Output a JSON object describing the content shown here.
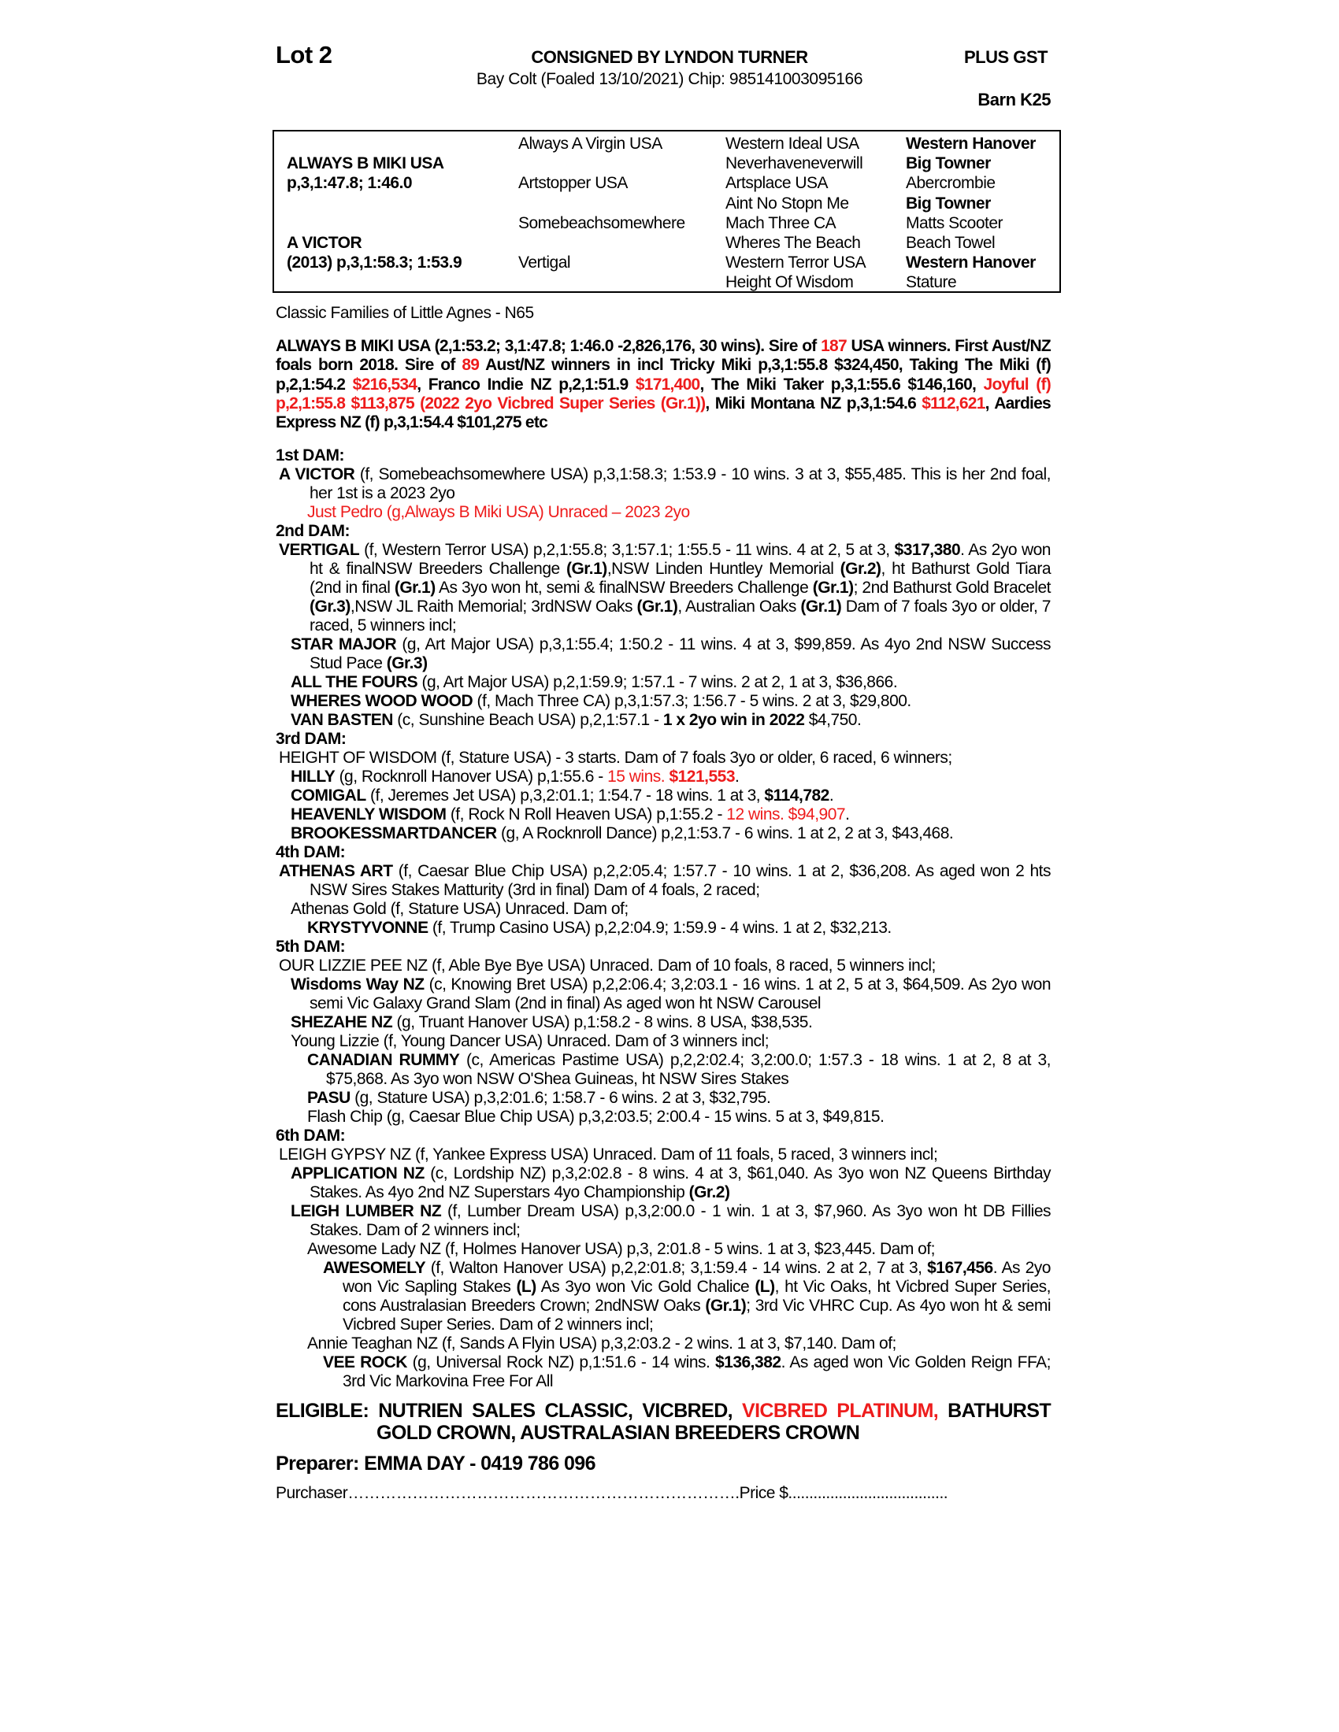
{
  "header": {
    "lot": "Lot 2",
    "consignor": "CONSIGNED BY LYNDON TURNER",
    "gst": "PLUS GST",
    "description": "Bay Colt (Foaled 13/10/2021) Chip: 985141003095166",
    "barn": "Barn K25"
  },
  "pedigree": {
    "sire_name": "ALWAYS B MIKI USA",
    "sire_record": "p,3,1:47.8; 1:46.0",
    "dam_name": "A VICTOR",
    "dam_record": "(2013) p,3,1:58.3; 1:53.9",
    "col2": [
      "Always A Virgin USA",
      "Artstopper USA",
      "Somebeachsomewhere",
      "Vertigal"
    ],
    "col3": [
      "Western Ideal USA",
      "Neverhaveneverwill",
      "Artsplace USA",
      "Aint No Stopn Me",
      "Mach Three CA",
      "Wheres The Beach",
      "Western Terror USA",
      "Height Of Wisdom"
    ],
    "col4": [
      {
        "t": "Western Hanover",
        "b": true
      },
      {
        "t": "Big Towner",
        "b": true
      },
      {
        "t": "Abercrombie",
        "b": false
      },
      {
        "t": "Big Towner",
        "b": true
      },
      {
        "t": "Matts Scooter",
        "b": false
      },
      {
        "t": "Beach Towel",
        "b": false
      },
      {
        "t": "Western Hanover",
        "b": true
      },
      {
        "t": "Stature",
        "b": false
      }
    ]
  },
  "family": "Classic Families of Little Agnes - N65",
  "sire_summary": [
    {
      "t": "ALWAYS B MIKI USA (2,1:53.2; 3,1:47.8; 1:46.0 -2,826,176, 30 wins). Sire of "
    },
    {
      "t": "187",
      "r": true
    },
    {
      "t": " USA winners. First Aust/NZ foals born 2018. Sire of "
    },
    {
      "t": "89",
      "r": true
    },
    {
      "t": " Aust/NZ winners in incl Tricky Miki p,3,1:55.8 $324,450, Taking The Miki (f) p,2,1:54.2 "
    },
    {
      "t": "$216,534",
      "r": true
    },
    {
      "t": ", Franco Indie NZ p,2,1:51.9 "
    },
    {
      "t": "$171,400",
      "r": true
    },
    {
      "t": ", The Miki Taker p,3,1:55.6 $146,160, "
    },
    {
      "t": "Joyful (f) p,2,1:55.8 $113,875 (2022 2yo Vicbred Super Series (Gr.1))",
      "r": true
    },
    {
      "t": ", Miki Montana NZ p,3,1:54.6 "
    },
    {
      "t": "$112,621",
      "r": true
    },
    {
      "t": ", Aardies Express NZ (f) p,3,1:54.4 $101,275 etc"
    }
  ],
  "dams": [
    {
      "heading": "1st DAM:",
      "entries": [
        {
          "level": 0,
          "segs": [
            {
              "t": "A VICTOR",
              "b": true
            },
            {
              "t": " (f, Somebeachsomewhere USA) p,3,1:58.3; 1:53.9 - 10 wins. 3 at 3, $55,485. This is her 2nd foal, her 1st is a 2023 2yo"
            }
          ]
        },
        {
          "level": 2,
          "segs": [
            {
              "t": "Just Pedro (g,Always B Miki USA) Unraced – 2023 2yo",
              "r": true
            }
          ]
        }
      ]
    },
    {
      "heading": "2nd DAM:",
      "entries": [
        {
          "level": 0,
          "segs": [
            {
              "t": "VERTIGAL",
              "b": true
            },
            {
              "t": " (f, Western Terror USA) p,2,1:55.8; 3,1:57.1; 1:55.5 - 11 wins. 4 at 2, 5 at 3, "
            },
            {
              "t": "$317,380",
              "b": true
            },
            {
              "t": ". As 2yo won ht & finalNSW Breeders Challenge "
            },
            {
              "t": "(Gr.1)",
              "b": true
            },
            {
              "t": ",NSW Linden Huntley Memorial "
            },
            {
              "t": "(Gr.2)",
              "b": true
            },
            {
              "t": ", ht Bathurst Gold Tiara (2nd in final "
            },
            {
              "t": "(Gr.1)",
              "b": true
            },
            {
              "t": " As 3yo won ht, semi & finalNSW Breeders Challenge "
            },
            {
              "t": "(Gr.1)",
              "b": true
            },
            {
              "t": "; 2nd Bathurst Gold Bracelet "
            },
            {
              "t": "(Gr.3)",
              "b": true
            },
            {
              "t": ",NSW JL Raith Memorial; 3rdNSW Oaks "
            },
            {
              "t": "(Gr.1)",
              "b": true
            },
            {
              "t": ", Australian Oaks "
            },
            {
              "t": "(Gr.1)",
              "b": true
            },
            {
              "t": " Dam of 7 foals 3yo or older, 7 raced, 5 winners incl;"
            }
          ]
        },
        {
          "level": 1,
          "segs": [
            {
              "t": "STAR MAJOR",
              "b": true
            },
            {
              "t": " (g, Art Major USA) p,3,1:55.4; 1:50.2 - 11 wins. 4 at 3, $99,859. As 4yo 2nd NSW Success Stud Pace "
            },
            {
              "t": "(Gr.3)",
              "b": true
            }
          ]
        },
        {
          "level": 1,
          "segs": [
            {
              "t": "ALL THE FOURS",
              "b": true
            },
            {
              "t": " (g, Art Major USA) p,2,1:59.9; 1:57.1 - 7 wins. 2 at 2, 1 at 3, $36,866."
            }
          ]
        },
        {
          "level": 1,
          "segs": [
            {
              "t": "WHERES WOOD WOOD",
              "b": true
            },
            {
              "t": " (f, Mach Three CA) p,3,1:57.3; 1:56.7 - 5 wins. 2 at 3, $29,800."
            }
          ]
        },
        {
          "level": 1,
          "segs": [
            {
              "t": "VAN BASTEN",
              "b": true
            },
            {
              "t": " (c, Sunshine Beach USA) p,2,1:57.1 - "
            },
            {
              "t": "1 x 2yo win in 2022",
              "b": true
            },
            {
              "t": " $4,750."
            }
          ]
        }
      ]
    },
    {
      "heading": "3rd DAM:",
      "entries": [
        {
          "level": 0,
          "segs": [
            {
              "t": "HEIGHT OF WISDOM (f, Stature USA) - 3 starts. Dam of 7 foals 3yo or older, 6 raced, 6 winners;"
            }
          ]
        },
        {
          "level": 1,
          "segs": [
            {
              "t": "HILLY",
              "b": true
            },
            {
              "t": " (g, Rocknroll Hanover USA) p,1:55.6 - "
            },
            {
              "t": "15 wins. ",
              "r": true
            },
            {
              "t": "$121,553",
              "r": true,
              "b": true
            },
            {
              "t": "."
            }
          ]
        },
        {
          "level": 1,
          "segs": [
            {
              "t": "COMIGAL",
              "b": true
            },
            {
              "t": " (f, Jeremes Jet USA) p,3,2:01.1; 1:54.7 - 18 wins. 1 at 3, "
            },
            {
              "t": "$114,782",
              "b": true
            },
            {
              "t": "."
            }
          ]
        },
        {
          "level": 1,
          "segs": [
            {
              "t": "HEAVENLY WISDOM",
              "b": true
            },
            {
              "t": " (f, Rock N Roll Heaven USA) p,1:55.2 - "
            },
            {
              "t": "12 wins. $94,907",
              "r": true
            },
            {
              "t": "."
            }
          ]
        },
        {
          "level": 1,
          "segs": [
            {
              "t": "BROOKESSMARTDANCER",
              "b": true
            },
            {
              "t": " (g, A Rocknroll Dance) p,2,1:53.7 - 6 wins. 1 at 2, 2 at 3, $43,468."
            }
          ]
        }
      ]
    },
    {
      "heading": "4th DAM:",
      "entries": [
        {
          "level": 0,
          "segs": [
            {
              "t": "ATHENAS ART",
              "b": true
            },
            {
              "t": " (f, Caesar Blue Chip USA) p,2,2:05.4; 1:57.7 - 10 wins. 1 at 2, $36,208. As aged won 2 hts NSW Sires Stakes Matturity (3rd in final) Dam of 4 foals, 2 raced;"
            }
          ]
        },
        {
          "level": 1,
          "segs": [
            {
              "t": "Athenas Gold (f, Stature USA) Unraced. Dam of;"
            }
          ]
        },
        {
          "level": 2,
          "segs": [
            {
              "t": "KRYSTYVONNE",
              "b": true
            },
            {
              "t": " (f, Trump Casino USA) p,2,2:04.9; 1:59.9 - 4 wins. 1 at 2, $32,213."
            }
          ]
        }
      ]
    },
    {
      "heading": "5th DAM:",
      "entries": [
        {
          "level": 0,
          "segs": [
            {
              "t": "OUR LIZZIE PEE NZ (f, Able Bye Bye USA) Unraced. Dam of 10 foals, 8 raced, 5 winners incl;"
            }
          ]
        },
        {
          "level": 1,
          "segs": [
            {
              "t": "Wisdoms Way NZ",
              "b": true
            },
            {
              "t": " (c, Knowing Bret USA) p,2,2:06.4; 3,2:03.1 - 16 wins. 1 at 2, 5 at 3, $64,509. As 2yo won semi Vic Galaxy Grand Slam (2nd in final) As aged won ht NSW Carousel"
            }
          ]
        },
        {
          "level": 1,
          "segs": [
            {
              "t": "SHEZAHE NZ",
              "b": true
            },
            {
              "t": " (g, Truant Hanover USA) p,1:58.2 - 8 wins. 8 USA, $38,535."
            }
          ]
        },
        {
          "level": 1,
          "segs": [
            {
              "t": "Young Lizzie (f, Young Dancer USA) Unraced. Dam of 3 winners incl;"
            }
          ]
        },
        {
          "level": 2,
          "segs": [
            {
              "t": "CANADIAN RUMMY",
              "b": true
            },
            {
              "t": " (c, Americas Pastime USA) p,2,2:02.4; 3,2:00.0; 1:57.3 - 18 wins. 1 at 2, 8 at 3, $75,868. As 3yo won NSW O'Shea Guineas, ht NSW Sires Stakes"
            }
          ]
        },
        {
          "level": 2,
          "segs": [
            {
              "t": "PASU",
              "b": true
            },
            {
              "t": " (g, Stature USA) p,3,2:01.6; 1:58.7 - 6 wins. 2 at 3, $32,795."
            }
          ]
        },
        {
          "level": 2,
          "segs": [
            {
              "t": "Flash Chip (g, Caesar Blue Chip USA) p,3,2:03.5; 2:00.4 - 15 wins. 5 at 3, $49,815."
            }
          ]
        }
      ]
    },
    {
      "heading": "6th DAM:",
      "entries": [
        {
          "level": 0,
          "segs": [
            {
              "t": "LEIGH GYPSY NZ (f, Yankee Express USA) Unraced. Dam of 11 foals, 5 raced, 3 winners incl;"
            }
          ]
        },
        {
          "level": 1,
          "segs": [
            {
              "t": "APPLICATION NZ",
              "b": true
            },
            {
              "t": " (c, Lordship NZ) p,3,2:02.8 - 8 wins. 4 at 3, $61,040. As 3yo won NZ Queens Birthday Stakes. As 4yo 2nd NZ Superstars 4yo Championship "
            },
            {
              "t": "(Gr.2)",
              "b": true
            }
          ]
        },
        {
          "level": 1,
          "segs": [
            {
              "t": "LEIGH LUMBER NZ",
              "b": true
            },
            {
              "t": " (f, Lumber Dream USA) p,3,2:00.0 - 1 win. 1 at 3, $7,960. As 3yo won ht DB Fillies Stakes. Dam of 2 winners incl;"
            }
          ]
        },
        {
          "level": 2,
          "segs": [
            {
              "t": "Awesome Lady NZ (f, Holmes Hanover USA) p,3, 2:01.8 - 5 wins. 1 at 3, $23,445. Dam of;"
            }
          ]
        },
        {
          "level": 3,
          "segs": [
            {
              "t": "AWESOMELY",
              "b": true
            },
            {
              "t": " (f, Walton Hanover USA) p,2,2:01.8; 3,1:59.4 - 14 wins. 2 at 2, 7 at 3, "
            },
            {
              "t": "$167,456",
              "b": true
            },
            {
              "t": ". As 2yo won Vic Sapling Stakes "
            },
            {
              "t": "(L)",
              "b": true
            },
            {
              "t": " As 3yo won Vic Gold Chalice "
            },
            {
              "t": "(L)",
              "b": true
            },
            {
              "t": ", ht Vic Oaks, ht Vicbred Super Series, cons Australasian Breeders Crown; 2ndNSW Oaks "
            },
            {
              "t": "(Gr.1)",
              "b": true
            },
            {
              "t": "; 3rd Vic VHRC Cup. As 4yo won ht & semi Vicbred Super Series. Dam of 2 winners incl;"
            }
          ]
        },
        {
          "level": 2,
          "segs": [
            {
              "t": "Annie Teaghan NZ (f, Sands A Flyin USA) p,3,2:03.2 - 2 wins. 1 at 3, $7,140. Dam of;"
            }
          ]
        },
        {
          "level": 3,
          "segs": [
            {
              "t": "VEE ROCK",
              "b": true
            },
            {
              "t": " (g, Universal Rock NZ) p,1:51.6 - 14 wins. "
            },
            {
              "t": "$136,382",
              "b": true
            },
            {
              "t": ". As aged won Vic Golden Reign FFA; 3rd Vic Markovina Free For All"
            }
          ]
        }
      ]
    }
  ],
  "eligible": [
    {
      "t": "ELIGIBLE: NUTRIEN SALES CLASSIC, VICBRED, "
    },
    {
      "t": "VICBRED PLATINUM,",
      "r": true
    },
    {
      "t": " BATHURST GOLD CROWN, AUSTRALASIAN BREEDERS CROWN"
    }
  ],
  "preparer": "Preparer: EMMA DAY - 0419 786 096",
  "purchaser": {
    "label": "Purchaser",
    "dots": "……………………………………………………………….",
    "price_label": "Price $",
    "price_dots": "......................................"
  },
  "colors": {
    "highlight": "#ee1c1c",
    "text": "#000000"
  }
}
